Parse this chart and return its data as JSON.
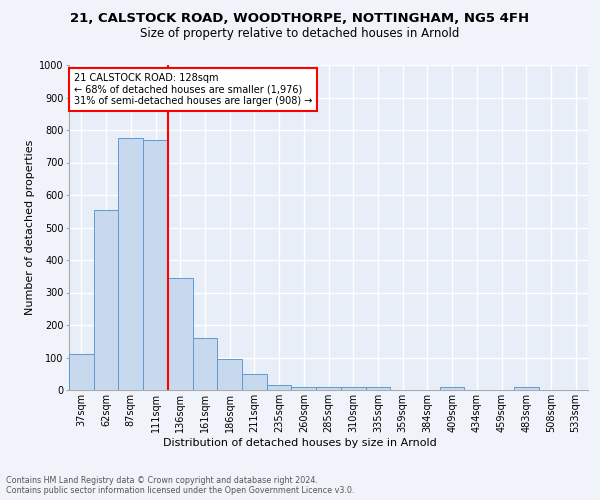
{
  "title1": "21, CALSTOCK ROAD, WOODTHORPE, NOTTINGHAM, NG5 4FH",
  "title2": "Size of property relative to detached houses in Arnold",
  "xlabel": "Distribution of detached houses by size in Arnold",
  "ylabel": "Number of detached properties",
  "footer": "Contains HM Land Registry data © Crown copyright and database right 2024.\nContains public sector information licensed under the Open Government Licence v3.0.",
  "bin_labels": [
    "37sqm",
    "62sqm",
    "87sqm",
    "111sqm",
    "136sqm",
    "161sqm",
    "186sqm",
    "211sqm",
    "235sqm",
    "260sqm",
    "285sqm",
    "310sqm",
    "335sqm",
    "359sqm",
    "384sqm",
    "409sqm",
    "434sqm",
    "459sqm",
    "483sqm",
    "508sqm",
    "533sqm"
  ],
  "bar_values": [
    110,
    555,
    775,
    770,
    345,
    160,
    95,
    50,
    15,
    10,
    10,
    8,
    8,
    0,
    0,
    10,
    0,
    0,
    10,
    0,
    0
  ],
  "bar_color": "#c8d9ed",
  "bar_edge_color": "#5b9bd5",
  "marker_bin_index": 4,
  "marker_line_color": "red",
  "annotation_text": "21 CALSTOCK ROAD: 128sqm\n← 68% of detached houses are smaller (1,976)\n31% of semi-detached houses are larger (908) →",
  "annotation_box_color": "white",
  "annotation_box_edge_color": "red",
  "ylim": [
    0,
    1000
  ],
  "yticks": [
    0,
    100,
    200,
    300,
    400,
    500,
    600,
    700,
    800,
    900,
    1000
  ],
  "fig_background": "#f0f4fa",
  "plot_background": "#e8eef7",
  "grid_color": "white",
  "title1_fontsize": 9.5,
  "title2_fontsize": 8.5,
  "ylabel_fontsize": 8,
  "xlabel_fontsize": 8,
  "tick_fontsize": 7,
  "footer_fontsize": 5.8
}
